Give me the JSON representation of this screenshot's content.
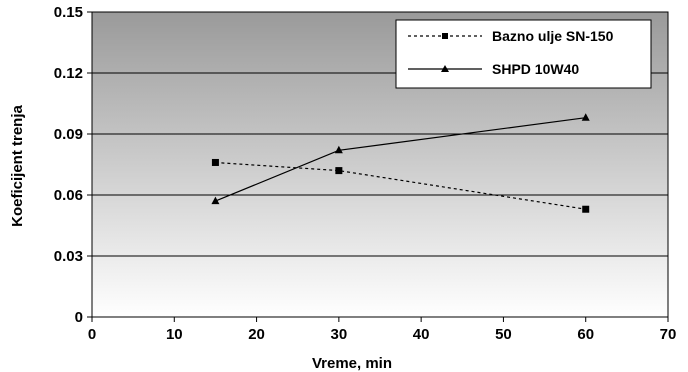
{
  "chart_data": {
    "type": "line",
    "xlabel": "Vreme, min",
    "ylabel": "Koeficijent trenja",
    "xlim": [
      0,
      70
    ],
    "ylim": [
      0,
      0.15
    ],
    "xticks": [
      "0",
      "10",
      "20",
      "30",
      "40",
      "50",
      "60",
      "70"
    ],
    "yticks": [
      "0",
      "0.03",
      "0.06",
      "0.09",
      "0.12",
      "0.15"
    ],
    "grid": "horizontal",
    "background": "gradient gray (dark top, light bottom)",
    "legend_position": "top-right",
    "series": [
      {
        "name": "Bazno ulje SN-150",
        "line_style": "dashed",
        "marker": "square",
        "color": "#000000",
        "x": [
          15,
          30,
          60
        ],
        "y": [
          0.076,
          0.072,
          0.053
        ]
      },
      {
        "name": "SHPD 10W40",
        "line_style": "solid",
        "marker": "triangle",
        "color": "#000000",
        "x": [
          15,
          30,
          60
        ],
        "y": [
          0.057,
          0.082,
          0.098
        ]
      }
    ]
  }
}
